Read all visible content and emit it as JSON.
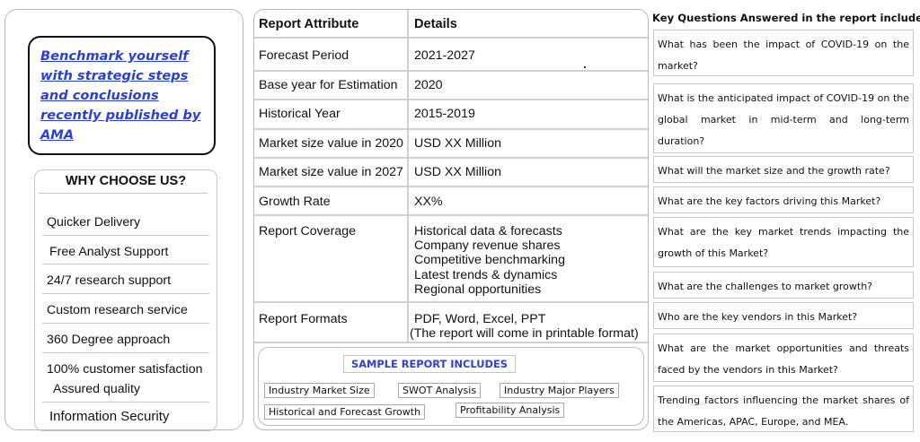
{
  "left": {
    "benchmark_link": "Benchmark yourself with strategic steps and conclusions recently published by AMA",
    "why_title": "WHY CHOOSE US?",
    "why_items": [
      "Quicker Delivery",
      "Free Analyst Support",
      "24/7 research support",
      "Custom research service",
      "360 Degree approach",
      "100% customer satisfaction",
      "Assured quality",
      "Information Security"
    ]
  },
  "table": {
    "header_attribute": "Report Attribute",
    "header_details": "Details",
    "rows": [
      {
        "attribute": "Forecast Period",
        "details": "2021-2027"
      },
      {
        "attribute": "Base year for Estimation",
        "details": "2020"
      },
      {
        "attribute": "Historical Year",
        "details": "2015-2019"
      },
      {
        "attribute": "Market size value in 2020",
        "details": "USD XX Million"
      },
      {
        "attribute": "Market size value in 2027",
        "details": "USD XX Million"
      },
      {
        "attribute": "Growth Rate",
        "details": "XX%"
      }
    ],
    "coverage_attribute": "Report Coverage",
    "coverage_items": [
      "Historical data & forecasts",
      "Company revenue shares",
      "Competitive benchmarking",
      "Latest trends & dynamics",
      "Regional opportunities"
    ],
    "formats_attribute": "Report Formats",
    "formats_line1": "PDF, Word, Excel, PPT",
    "formats_line2": "(The report will come in printable  format)"
  },
  "sample": {
    "title": "SAMPLE REPORT INCLUDES",
    "tags": [
      "Industry Market Size",
      "SWOT Analysis",
      "Industry Major Players",
      "Historical and Forecast Growth",
      "Profitability Analysis"
    ]
  },
  "questions": {
    "title": "Key Questions Answered in the report include:",
    "items": [
      "What has been the impact of COVID-19 on the market?",
      "What is the anticipated impact of COVID-19 on the global market in mid-term and long-term duration?",
      "What will the market size and the growth rate?",
      "What are the key factors driving this Market?",
      "What are the key market trends impacting the growth of this Market?",
      "What are the challenges to market growth?",
      "Who are the key vendors in this Market?",
      "What are the market opportunities and threats faced by the vendors in this Market?",
      "Trending factors influencing the market shares of the Americas, APAC, Europe, and MEA."
    ]
  }
}
